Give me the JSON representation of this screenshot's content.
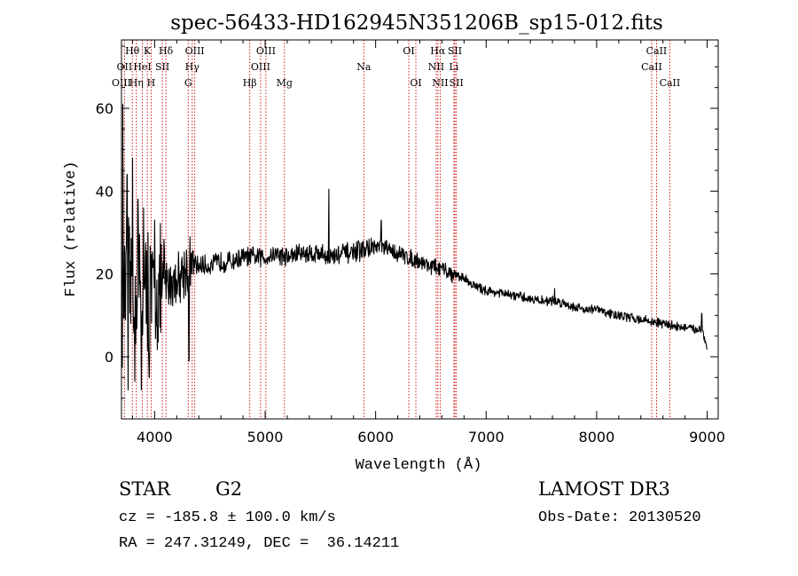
{
  "chart_data": {
    "type": "line",
    "title": "spec-56433-HD162945N351206B_sp15-012.fits",
    "xlabel": "Wavelength (Å)",
    "ylabel": "Flux (relative)",
    "xlim": [
      3700,
      9100
    ],
    "ylim": [
      -15.0,
      76.5
    ],
    "x_ticks": [
      4000,
      5000,
      6000,
      7000,
      8000,
      9000
    ],
    "x_tick_labels": [
      "4000",
      "5000",
      "6000",
      "7000",
      "8000",
      "9000"
    ],
    "y_ticks": [
      0,
      20,
      40,
      60
    ],
    "y_tick_labels": [
      "0",
      "20",
      "40",
      "60"
    ],
    "grid": false,
    "series_name": "spectrum",
    "spectrum_anchors": [
      [
        3700,
        12
      ],
      [
        3720,
        16
      ],
      [
        3740,
        18
      ],
      [
        3800,
        17
      ],
      [
        3900,
        15
      ],
      [
        4000,
        15
      ],
      [
        4100,
        17
      ],
      [
        4200,
        19
      ],
      [
        4300,
        22
      ],
      [
        4400,
        22
      ],
      [
        4500,
        22
      ],
      [
        4600,
        23
      ],
      [
        4700,
        23
      ],
      [
        4800,
        24
      ],
      [
        4900,
        24
      ],
      [
        5000,
        24
      ],
      [
        5100,
        25
      ],
      [
        5200,
        24
      ],
      [
        5300,
        25
      ],
      [
        5400,
        25
      ],
      [
        5500,
        25
      ],
      [
        5600,
        24
      ],
      [
        5700,
        25
      ],
      [
        5800,
        25
      ],
      [
        5900,
        26
      ],
      [
        6000,
        26.5
      ],
      [
        6100,
        26
      ],
      [
        6200,
        25
      ],
      [
        6300,
        24
      ],
      [
        6400,
        23
      ],
      [
        6500,
        22
      ],
      [
        6600,
        21
      ],
      [
        6700,
        20
      ],
      [
        6800,
        19
      ],
      [
        6900,
        17
      ],
      [
        7000,
        16
      ],
      [
        7100,
        15.5
      ],
      [
        7200,
        15
      ],
      [
        7300,
        14.5
      ],
      [
        7400,
        14
      ],
      [
        7500,
        13.5
      ],
      [
        7600,
        13.5
      ],
      [
        7700,
        13
      ],
      [
        7800,
        12
      ],
      [
        7900,
        11.5
      ],
      [
        8000,
        11.5
      ],
      [
        8100,
        10.5
      ],
      [
        8200,
        10
      ],
      [
        8300,
        9.5
      ],
      [
        8400,
        9
      ],
      [
        8500,
        8.5
      ],
      [
        8600,
        8
      ],
      [
        8700,
        7.5
      ],
      [
        8800,
        7
      ],
      [
        8900,
        6.5
      ],
      [
        8950,
        7
      ],
      [
        9000,
        2
      ]
    ],
    "noise_ranges": [
      {
        "from": 3700,
        "to": 4100,
        "amplitude": 13
      },
      {
        "from": 4100,
        "to": 4350,
        "amplitude": 6
      },
      {
        "from": 4350,
        "to": 6000,
        "amplitude": 2.2
      },
      {
        "from": 6000,
        "to": 6700,
        "amplitude": 1.8
      },
      {
        "from": 6700,
        "to": 9000,
        "amplitude": 1.0
      }
    ],
    "spikes": [
      {
        "x": 3712,
        "y": 61
      },
      {
        "x": 3750,
        "y": 44
      },
      {
        "x": 3800,
        "y": 48
      },
      {
        "x": 3850,
        "y": 38
      },
      {
        "x": 3900,
        "y": 36
      },
      {
        "x": 3940,
        "y": 30
      },
      {
        "x": 4000,
        "y": 33
      },
      {
        "x": 3760,
        "y": -8
      },
      {
        "x": 3820,
        "y": -6
      },
      {
        "x": 3880,
        "y": -8
      },
      {
        "x": 3950,
        "y": -5
      },
      {
        "x": 4310,
        "y": -1
      },
      {
        "x": 5577,
        "y": 40.5
      },
      {
        "x": 6050,
        "y": 33
      },
      {
        "x": 7620,
        "y": 16.5
      },
      {
        "x": 8950,
        "y": 10.5
      }
    ],
    "lines": [
      {
        "label": "Hθ",
        "x": 3798,
        "row": 0
      },
      {
        "label": "K",
        "x": 3934,
        "row": 0
      },
      {
        "label": "Hδ",
        "x": 4102,
        "row": 0
      },
      {
        "label": "OIII",
        "x": 4363,
        "row": 0
      },
      {
        "label": "OIII",
        "x": 5007,
        "row": 0
      },
      {
        "label": "OI",
        "x": 6300,
        "row": 0
      },
      {
        "label": "Hα",
        "x": 6563,
        "row": 0
      },
      {
        "label": "SII",
        "x": 6717,
        "row": 0
      },
      {
        "label": "CaII",
        "x": 8542,
        "row": 0
      },
      {
        "label": "OII",
        "x": 3727,
        "row": 1
      },
      {
        "label": "HeI",
        "x": 3889,
        "row": 1
      },
      {
        "label": "SII",
        "x": 4070,
        "row": 1
      },
      {
        "label": "Hγ",
        "x": 4340,
        "row": 1
      },
      {
        "label": "OIII",
        "x": 4959,
        "row": 1
      },
      {
        "label": "Na",
        "x": 5893,
        "row": 1
      },
      {
        "label": "NII",
        "x": 6548,
        "row": 1
      },
      {
        "label": "Li",
        "x": 6708,
        "row": 1
      },
      {
        "label": "CaII",
        "x": 8498,
        "row": 1
      },
      {
        "label": "OIII",
        "x": 3700,
        "row": 2
      },
      {
        "label": "Hη",
        "x": 3835,
        "row": 2
      },
      {
        "label": "H",
        "x": 3968,
        "row": 2
      },
      {
        "label": "G",
        "x": 4304,
        "row": 2
      },
      {
        "label": "Hβ",
        "x": 4861,
        "row": 2
      },
      {
        "label": "Mg",
        "x": 5175,
        "row": 2
      },
      {
        "label": "OI",
        "x": 6364,
        "row": 2
      },
      {
        "label": "NII",
        "x": 6584,
        "row": 2
      },
      {
        "label": "SII",
        "x": 6731,
        "row": 2
      },
      {
        "label": "CaII",
        "x": 8662,
        "row": 2
      }
    ]
  },
  "info": {
    "object_class": "STAR",
    "subclass": "G2",
    "survey": "LAMOST DR3",
    "redshift_line": "cz = -185.8 ± 100.0 km/s",
    "obs_date_line": "Obs-Date: 20130520",
    "coords_line": "RA = 247.31249, DEC =  36.14211"
  },
  "colors": {
    "spectrum": "#000000",
    "axis": "#000000",
    "line_markers": "#cc0000",
    "background": "#ffffff"
  }
}
